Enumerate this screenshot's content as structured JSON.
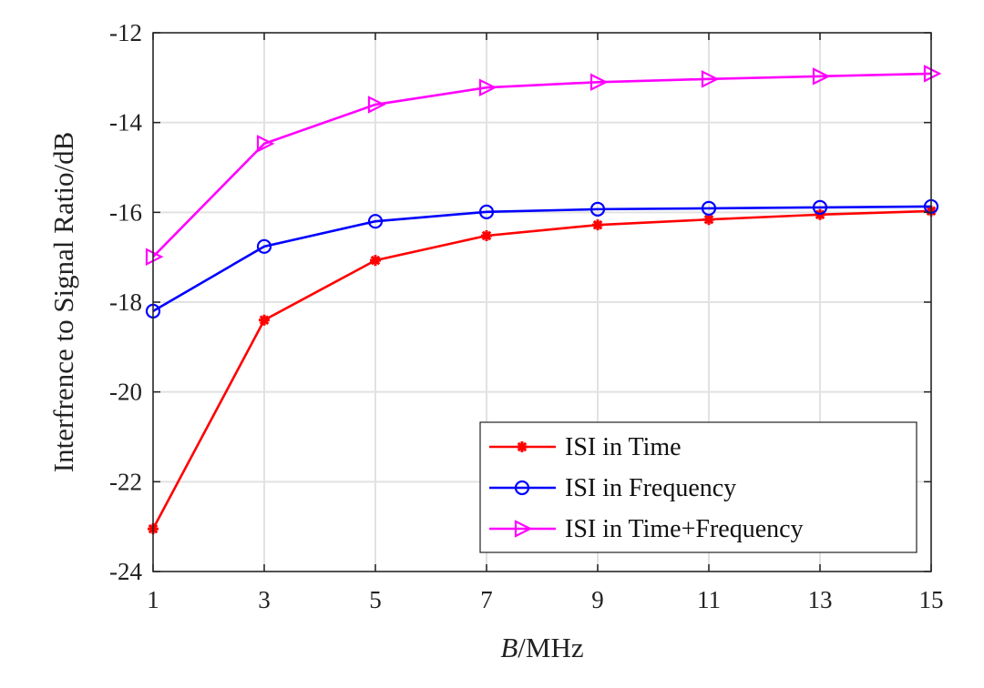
{
  "chart_data": {
    "type": "line",
    "xlabel_italic": "B",
    "xlabel_rest": "/MHz",
    "ylabel": "Interfrence to Signal Ratio/dB",
    "xlim": [
      1,
      15
    ],
    "ylim": [
      -24,
      -12
    ],
    "xticks": [
      1,
      3,
      5,
      7,
      9,
      11,
      13,
      15
    ],
    "yticks": [
      -24,
      -22,
      -20,
      -18,
      -16,
      -14,
      -12
    ],
    "grid": true,
    "legend_position": "bottom-right",
    "x": [
      1,
      3,
      5,
      7,
      9,
      11,
      13,
      15
    ],
    "series": [
      {
        "name": "ISI in Time",
        "color": "#ff0000",
        "marker": "asterisk",
        "values": [
          -23.05,
          -18.4,
          -17.07,
          -16.52,
          -16.28,
          -16.16,
          -16.05,
          -15.97
        ]
      },
      {
        "name": "ISI in Frequency",
        "color": "#0000ff",
        "marker": "circle",
        "values": [
          -18.2,
          -16.76,
          -16.2,
          -15.99,
          -15.93,
          -15.91,
          -15.89,
          -15.87
        ]
      },
      {
        "name": "ISI in Time+Frequency",
        "color": "#ff00ff",
        "marker": "triangle-right",
        "values": [
          -16.99,
          -14.47,
          -13.6,
          -13.22,
          -13.1,
          -13.03,
          -12.97,
          -12.91
        ]
      }
    ]
  }
}
